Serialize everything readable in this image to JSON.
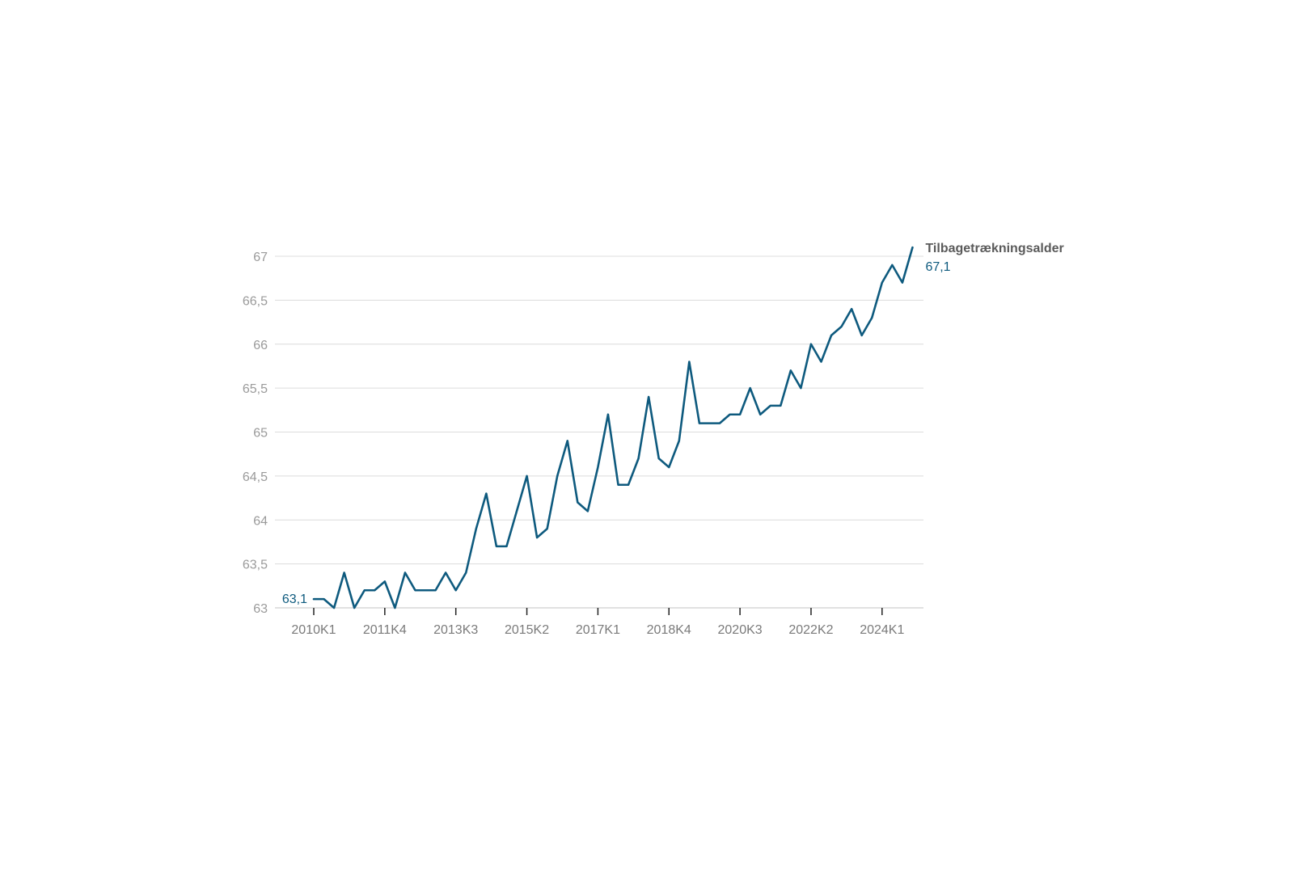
{
  "chart_data": {
    "type": "line",
    "title": "",
    "xlabel": "",
    "ylabel": "",
    "ylim": [
      63,
      67
    ],
    "yticks": [
      "63",
      "63,5",
      "64",
      "64,5",
      "65",
      "65,5",
      "66",
      "66,5",
      "67"
    ],
    "ytick_values": [
      63,
      63.5,
      64,
      64.5,
      65,
      65.5,
      66,
      66.5,
      67
    ],
    "xtick_labels": [
      "2010K1",
      "2011K4",
      "2013K3",
      "2015K2",
      "2017K1",
      "2018K4",
      "2020K3",
      "2022K2",
      "2024K1"
    ],
    "grid": true,
    "x": [
      "2010K1",
      "2010K2",
      "2010K3",
      "2010K4",
      "2011K1",
      "2011K2",
      "2011K3",
      "2011K4",
      "2012K1",
      "2012K2",
      "2012K3",
      "2012K4",
      "2013K1",
      "2013K2",
      "2013K3",
      "2013K4",
      "2014K1",
      "2014K2",
      "2014K3",
      "2014K4",
      "2015K1",
      "2015K2",
      "2015K3",
      "2015K4",
      "2016K1",
      "2016K2",
      "2016K3",
      "2016K4",
      "2017K1",
      "2017K2",
      "2017K3",
      "2017K4",
      "2018K1",
      "2018K2",
      "2018K3",
      "2018K4",
      "2019K1",
      "2019K2",
      "2019K3",
      "2019K4",
      "2020K1",
      "2020K2",
      "2020K3",
      "2020K4",
      "2021K1",
      "2021K2",
      "2021K3",
      "2021K4",
      "2022K1",
      "2022K2",
      "2022K3",
      "2022K4",
      "2023K1",
      "2023K2",
      "2023K3",
      "2023K4",
      "2024K1",
      "2024K2",
      "2024K3",
      "2024K4"
    ],
    "series": [
      {
        "name": "Tilbagetrækningsalder",
        "color": "#0e5a7e",
        "values": [
          63.1,
          63.1,
          63.0,
          63.4,
          63.0,
          63.2,
          63.2,
          63.3,
          63.0,
          63.4,
          63.2,
          63.2,
          63.2,
          63.4,
          63.2,
          63.4,
          63.9,
          64.3,
          63.7,
          63.7,
          64.1,
          64.5,
          63.8,
          63.9,
          64.5,
          64.9,
          64.2,
          64.1,
          64.6,
          65.2,
          64.4,
          64.4,
          64.7,
          65.4,
          64.7,
          64.6,
          64.9,
          65.8,
          65.1,
          65.1,
          65.1,
          65.2,
          65.2,
          65.5,
          65.2,
          65.3,
          65.3,
          65.7,
          65.5,
          66.0,
          65.8,
          66.1,
          66.2,
          66.4,
          66.1,
          66.3,
          66.7,
          66.9,
          66.7,
          67.1
        ]
      }
    ],
    "start_label": "63,1",
    "end_label": "67,1"
  }
}
